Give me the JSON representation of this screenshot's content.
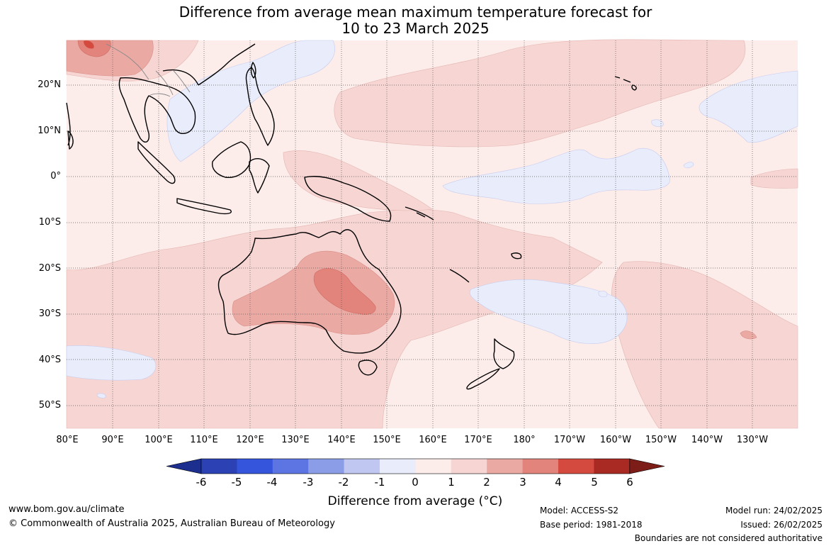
{
  "title": {
    "line1": "Difference from average mean maximum temperature forecast for",
    "line2": "10 to 23 March 2025"
  },
  "lat_labels": [
    "20°N",
    "10°N",
    "0°",
    "10°S",
    "20°S",
    "30°S",
    "40°S",
    "50°S"
  ],
  "lon_labels": [
    "80°E",
    "90°E",
    "100°E",
    "110°E",
    "120°E",
    "130°E",
    "140°E",
    "150°E",
    "160°E",
    "170°E",
    "180°",
    "170°W",
    "160°W",
    "150°W",
    "140°W",
    "130°W"
  ],
  "colorbar": {
    "ticks": [
      "-6",
      "-5",
      "-4",
      "-3",
      "-2",
      "-1",
      "0",
      "1",
      "2",
      "3",
      "4",
      "5",
      "6"
    ],
    "colors": [
      "#1c2f8e",
      "#2c42b4",
      "#3455dc",
      "#5d75e2",
      "#8a9de6",
      "#c0c8f2",
      "#e9ecfb",
      "#fcecea",
      "#f6d5d3",
      "#eba9a4",
      "#e2847b",
      "#d54a3e",
      "#a92a23",
      "#7d1d18"
    ],
    "title": "Difference from average (°C)"
  },
  "footer": {
    "url": "www.bom.gov.au/climate",
    "copyright": "© Commonwealth of Australia 2025, Australian Bureau of Meteorology",
    "model": "Model: ACCESS-S2",
    "base_period": "Base period: 1981-2018",
    "model_run": "Model run: 24/02/2025",
    "issued": "Issued: 26/02/2025",
    "disclaimer": "Boundaries are not considered authoritative"
  }
}
